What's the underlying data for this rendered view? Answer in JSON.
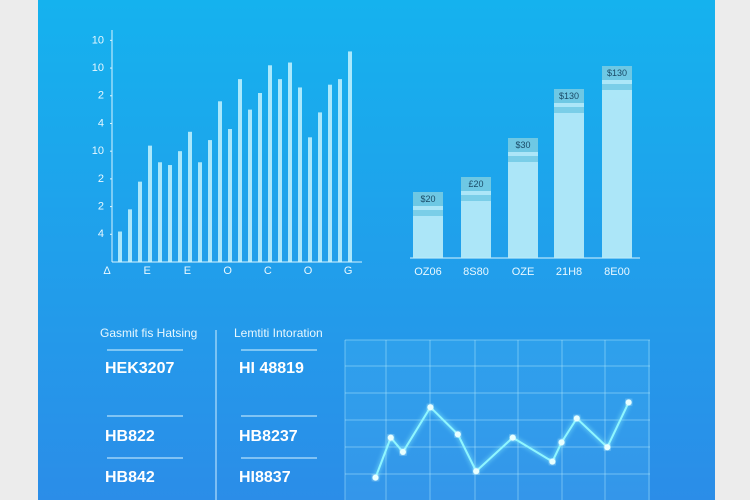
{
  "chart_data": [
    {
      "type": "bar",
      "color": "#c4f3ff",
      "yticks": [
        {
          "value": 1,
          "label": "4"
        },
        {
          "value": 2,
          "label": "2"
        },
        {
          "value": 3,
          "label": "2"
        },
        {
          "value": 4,
          "label": "10"
        },
        {
          "value": 5,
          "label": "4"
        },
        {
          "value": 6,
          "label": "2"
        },
        {
          "value": 7,
          "label": "10"
        },
        {
          "value": 8,
          "label": "10"
        }
      ],
      "ylim": [
        0,
        8.5
      ],
      "xlabels": [
        "Δ",
        "E",
        "E",
        "O",
        "C",
        "O",
        "G"
      ],
      "values": [
        1.1,
        1.9,
        2.9,
        4.2,
        3.6,
        3.5,
        4.0,
        4.7,
        3.6,
        4.4,
        5.8,
        4.8,
        6.6,
        5.5,
        6.1,
        7.1,
        6.6,
        7.2,
        6.3,
        4.5,
        5.4,
        6.4,
        6.6,
        7.6
      ]
    },
    {
      "type": "bar",
      "color": "#b9ecf8",
      "band_color": "#6ec8e4",
      "categories": [
        "OZ06",
        "8S80",
        "OZE",
        "21H8",
        "8E00"
      ],
      "tags": [
        "$20",
        "£20",
        "$30",
        "$130",
        "$130"
      ],
      "ylim": [
        0,
        200
      ],
      "values": [
        66,
        81,
        120,
        169,
        192
      ]
    },
    {
      "type": "line",
      "color": "#8ff6ff",
      "grid": true,
      "xlim": [
        0,
        100
      ],
      "ylim": [
        0,
        100
      ],
      "x": [
        10,
        15,
        19,
        28,
        37,
        43,
        55,
        68,
        71,
        76,
        86,
        93
      ],
      "values": [
        14,
        39,
        30,
        58,
        41,
        18,
        39,
        24,
        36,
        51,
        33,
        61
      ]
    }
  ],
  "stats": [
    {
      "header": "Gasmit fis Hatsing",
      "values": [
        "HEK3207",
        "HB822",
        "HB842"
      ]
    },
    {
      "header": "Lemtiti Intoration",
      "values": [
        "HI 48819",
        "HB8237",
        "HI8837"
      ]
    }
  ]
}
